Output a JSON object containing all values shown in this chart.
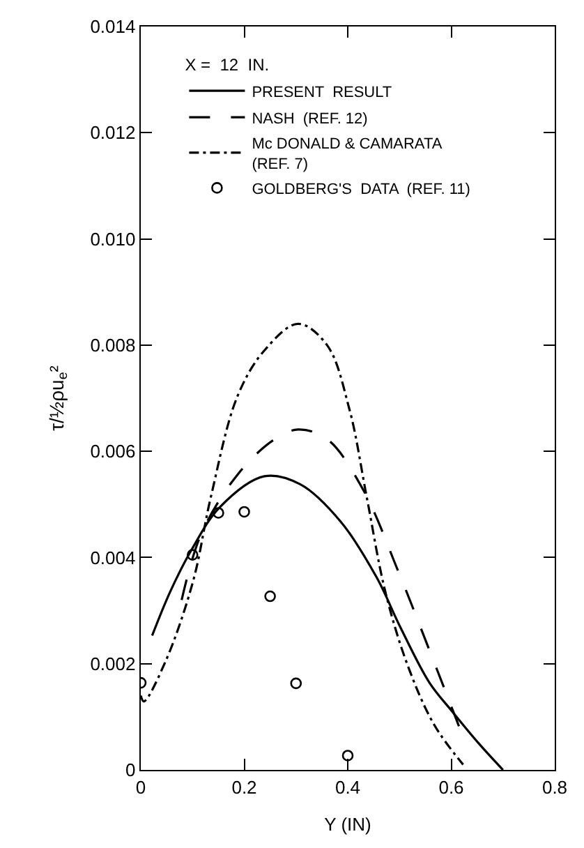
{
  "chart_data": {
    "type": "line",
    "xlabel": "Y (IN)",
    "ylabel": "τ/½ρu$_{e}$²",
    "legend_title": "X =  12  IN.",
    "xlim": [
      0,
      0.8
    ],
    "ylim": [
      0,
      0.014
    ],
    "xticks": [
      0,
      0.2,
      0.4,
      0.6,
      0.8
    ],
    "yticks": [
      0,
      0.002,
      0.004,
      0.006,
      0.008,
      {
        "value": 0.01,
        "label": "0.010"
      },
      0.012,
      0.014
    ],
    "legend": "top left",
    "series": [
      {
        "name": "PRESENT  RESULT",
        "color": "#000000",
        "line_style": "solid",
        "x": [
          0.022,
          0.058,
          0.099,
          0.153,
          0.239,
          0.308,
          0.386,
          0.455,
          0.502,
          0.558,
          0.601,
          0.653,
          0.7
        ],
        "values": [
          0.00253,
          0.00338,
          0.00416,
          0.00495,
          0.00553,
          0.00538,
          0.00468,
          0.00364,
          0.00268,
          0.00164,
          0.00111,
          0.0005,
          0.0
        ]
      },
      {
        "name": "NASH  (REF. 12)",
        "color": "#000000",
        "line_style": "dashed",
        "x": [
          0.079,
          0.118,
          0.187,
          0.256,
          0.304,
          0.36,
          0.429,
          0.498,
          0.558,
          0.619
        ],
        "values": [
          0.0032,
          0.00447,
          0.00556,
          0.00621,
          0.00641,
          0.00623,
          0.00529,
          0.00373,
          0.00225,
          0.00072
        ]
      },
      {
        "name": "Mc DONALD & CAMARATA\n(REF. 7)",
        "color": "#000000",
        "line_style": "dashdot",
        "x": [
          0.0,
          0.006,
          0.049,
          0.101,
          0.135,
          0.187,
          0.239,
          0.304,
          0.36,
          0.403,
          0.437,
          0.472,
          0.515,
          0.567,
          0.623
        ],
        "values": [
          0.0014,
          0.00129,
          0.00207,
          0.00355,
          0.00512,
          0.00704,
          0.0079,
          0.0084,
          0.008,
          0.0068,
          0.00512,
          0.00338,
          0.00199,
          0.00085,
          0.0001
        ]
      },
      {
        "name": "GOLDBERG'S  DATA  (REF. 11)",
        "type": "scatter",
        "marker": "circle",
        "color": "#000000",
        "x": [
          0.0,
          0.1,
          0.15,
          0.2,
          0.25,
          0.3,
          0.4
        ],
        "values": [
          0.00164,
          0.00405,
          0.00484,
          0.00486,
          0.00327,
          0.00163,
          0.00027
        ]
      }
    ]
  }
}
